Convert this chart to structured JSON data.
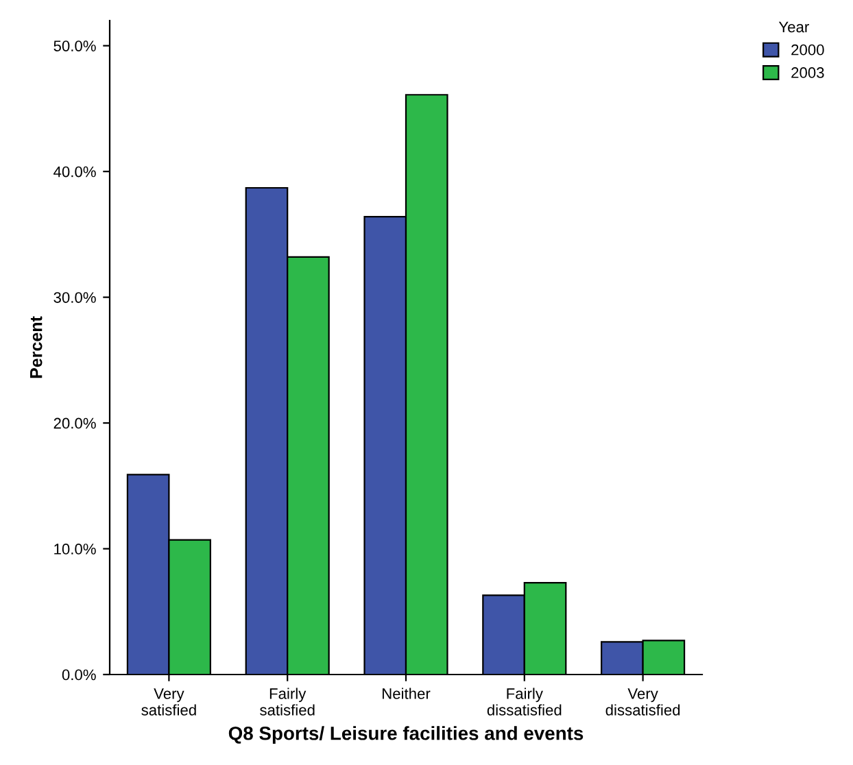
{
  "chart_data": {
    "type": "bar",
    "xlabel": "Q8 Sports/ Leisure facilities and events",
    "ylabel": "Percent",
    "legend_title": "Year",
    "categories": [
      "Very\nsatisfied",
      "Fairly\nsatisfied",
      "Neither",
      "Fairly\ndissatisfied",
      "Very\ndissatisfied"
    ],
    "series": [
      {
        "name": "2000",
        "color": "#3f55a8",
        "values": [
          15.9,
          38.7,
          36.4,
          6.3,
          2.6
        ]
      },
      {
        "name": "2003",
        "color": "#2db84a",
        "values": [
          10.7,
          33.2,
          46.1,
          7.3,
          2.7
        ]
      }
    ],
    "ylim": [
      0,
      52
    ],
    "yticks": [
      {
        "value": 0,
        "label": "0.0%"
      },
      {
        "value": 10,
        "label": "10.0%"
      },
      {
        "value": 20,
        "label": "20.0%"
      },
      {
        "value": 30,
        "label": "30.0%"
      },
      {
        "value": 40,
        "label": "40.0%"
      },
      {
        "value": 50,
        "label": "50.0%"
      }
    ],
    "grid": false,
    "legend": "top right"
  }
}
